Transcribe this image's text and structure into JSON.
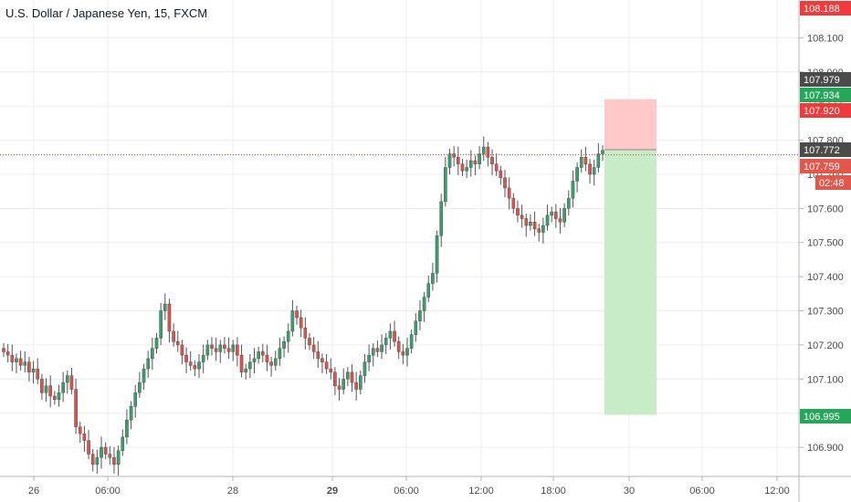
{
  "header": {
    "title": "U.S. Dollar / Japanese Yen, 15, FXCM"
  },
  "colors": {
    "up": "#3b9e6d",
    "down": "#d9534f",
    "grid": "#e9ecf1",
    "axis_text": "#4a4a4a",
    "price_line": "#d9362b",
    "target_zone": "#c9ecc8",
    "stop_zone": "#ffc9c9",
    "label_red": "#ef3b3b",
    "label_green": "#26a65b",
    "label_dark": "#4b4b4b",
    "label_mid_red": "#e2574c"
  },
  "chart_data": {
    "type": "candlestick",
    "title": "U.S. Dollar / Japanese Yen, 15, FXCM",
    "ylim": [
      106.82,
      108.2
    ],
    "y_ticks": [
      "108.100",
      "108.000",
      "107.900",
      "107.800",
      "107.700",
      "107.600",
      "107.500",
      "107.400",
      "107.300",
      "107.200",
      "107.100",
      "107.000",
      "106.900"
    ],
    "x_ticks": [
      {
        "label": "26",
        "bold": false
      },
      {
        "label": "06:00",
        "bold": false
      },
      {
        "label": "28",
        "bold": false
      },
      {
        "label": "29",
        "bold": true
      },
      {
        "label": "06:00",
        "bold": false
      },
      {
        "label": "12:00",
        "bold": false
      },
      {
        "label": "18:00",
        "bold": false
      },
      {
        "label": "30",
        "bold": false
      },
      {
        "label": "06:00",
        "bold": false
      },
      {
        "label": "12:00",
        "bold": false
      }
    ],
    "series_close": [
      107.18,
      107.17,
      107.15,
      107.16,
      107.14,
      107.15,
      107.12,
      107.13,
      107.1,
      107.06,
      107.08,
      107.05,
      107.04,
      107.06,
      107.09,
      107.11,
      107.07,
      106.96,
      106.94,
      106.92,
      106.88,
      106.85,
      106.87,
      106.9,
      106.88,
      106.87,
      106.85,
      106.89,
      106.93,
      106.98,
      107.02,
      107.06,
      107.09,
      107.13,
      107.16,
      107.19,
      107.22,
      107.3,
      107.32,
      107.24,
      107.21,
      107.2,
      107.17,
      107.15,
      107.14,
      107.13,
      107.15,
      107.17,
      107.2,
      107.19,
      107.18,
      107.2,
      107.19,
      107.18,
      107.2,
      107.17,
      107.12,
      107.13,
      107.15,
      107.16,
      107.18,
      107.17,
      107.15,
      107.14,
      107.16,
      107.19,
      107.21,
      107.24,
      107.3,
      107.28,
      107.25,
      107.22,
      107.2,
      107.18,
      107.16,
      107.15,
      107.13,
      107.12,
      107.08,
      107.07,
      107.1,
      107.12,
      107.09,
      107.07,
      107.11,
      107.15,
      107.17,
      107.19,
      107.18,
      107.2,
      107.22,
      107.24,
      107.21,
      107.18,
      107.17,
      107.19,
      107.23,
      107.27,
      107.3,
      107.34,
      107.38,
      107.41,
      107.52,
      107.62,
      107.72,
      107.76,
      107.75,
      107.73,
      107.71,
      107.72,
      107.74,
      107.73,
      107.76,
      107.78,
      107.75,
      107.73,
      107.71,
      107.69,
      107.66,
      107.63,
      107.6,
      107.58,
      107.57,
      107.55,
      107.56,
      107.54,
      107.53,
      107.55,
      107.58,
      107.59,
      107.57,
      107.56,
      107.6,
      107.63,
      107.68,
      107.72,
      107.75,
      107.73,
      107.7,
      107.72,
      107.76,
      107.77
    ],
    "current_price": "107.772",
    "countdown": "02:48",
    "price_labels": [
      {
        "value": "108.188",
        "kind": "red"
      },
      {
        "value": "107.979",
        "kind": "dark"
      },
      {
        "value": "107.934",
        "kind": "green"
      },
      {
        "value": "107.920",
        "kind": "red"
      },
      {
        "value": "107.772",
        "kind": "dark"
      },
      {
        "value": "107.759",
        "kind": "mid_red"
      },
      {
        "value": "106.995",
        "kind": "green"
      }
    ],
    "position": {
      "entry": 107.772,
      "stop": 107.92,
      "target": 106.995
    }
  }
}
